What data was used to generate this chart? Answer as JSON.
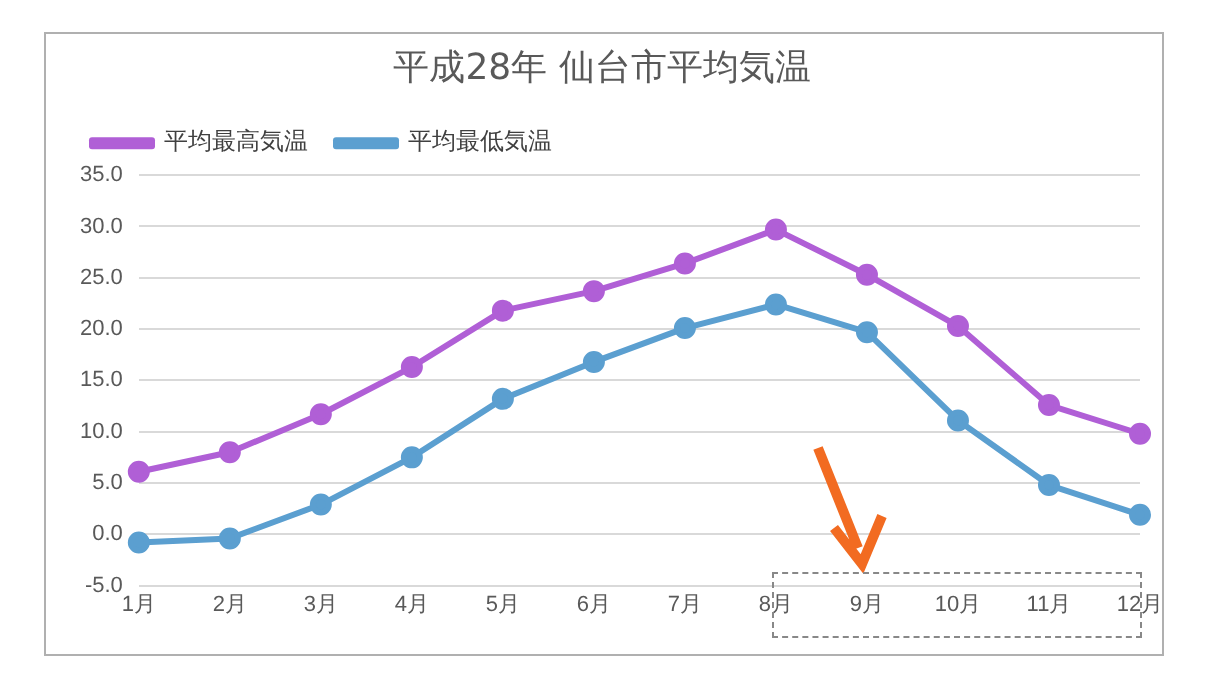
{
  "chart_data": {
    "type": "line",
    "title": "平成28年 仙台市平均気温",
    "categories": [
      "1月",
      "2月",
      "3月",
      "4月",
      "5月",
      "6月",
      "7月",
      "8月",
      "9月",
      "10月",
      "11月",
      "12月"
    ],
    "series": [
      {
        "name": "平均最高気温",
        "color": "#b05fd6",
        "values": [
          6.1,
          8.0,
          11.7,
          16.3,
          21.8,
          23.7,
          26.4,
          29.7,
          25.3,
          20.3,
          12.6,
          9.8
        ]
      },
      {
        "name": "平均最低気温",
        "color": "#5b9fd0",
        "values": [
          -0.8,
          -0.4,
          2.9,
          7.5,
          13.2,
          16.8,
          20.1,
          22.4,
          19.7,
          11.1,
          4.8,
          1.9
        ]
      }
    ],
    "ylim": [
      -5,
      35
    ],
    "yticks": [
      {
        "value": -5,
        "label": "-5.0"
      },
      {
        "value": 0,
        "label": "0.0"
      },
      {
        "value": 5,
        "label": "5.0"
      },
      {
        "value": 10,
        "label": "10.0"
      },
      {
        "value": 15,
        "label": "15.0"
      },
      {
        "value": 20,
        "label": "20.0"
      },
      {
        "value": 25,
        "label": "25.0"
      },
      {
        "value": 30,
        "label": "30.0"
      },
      {
        "value": 35,
        "label": "35.0"
      }
    ],
    "grid": "y",
    "legend": "top left",
    "marker": "circle",
    "line_style": "solid"
  }
}
